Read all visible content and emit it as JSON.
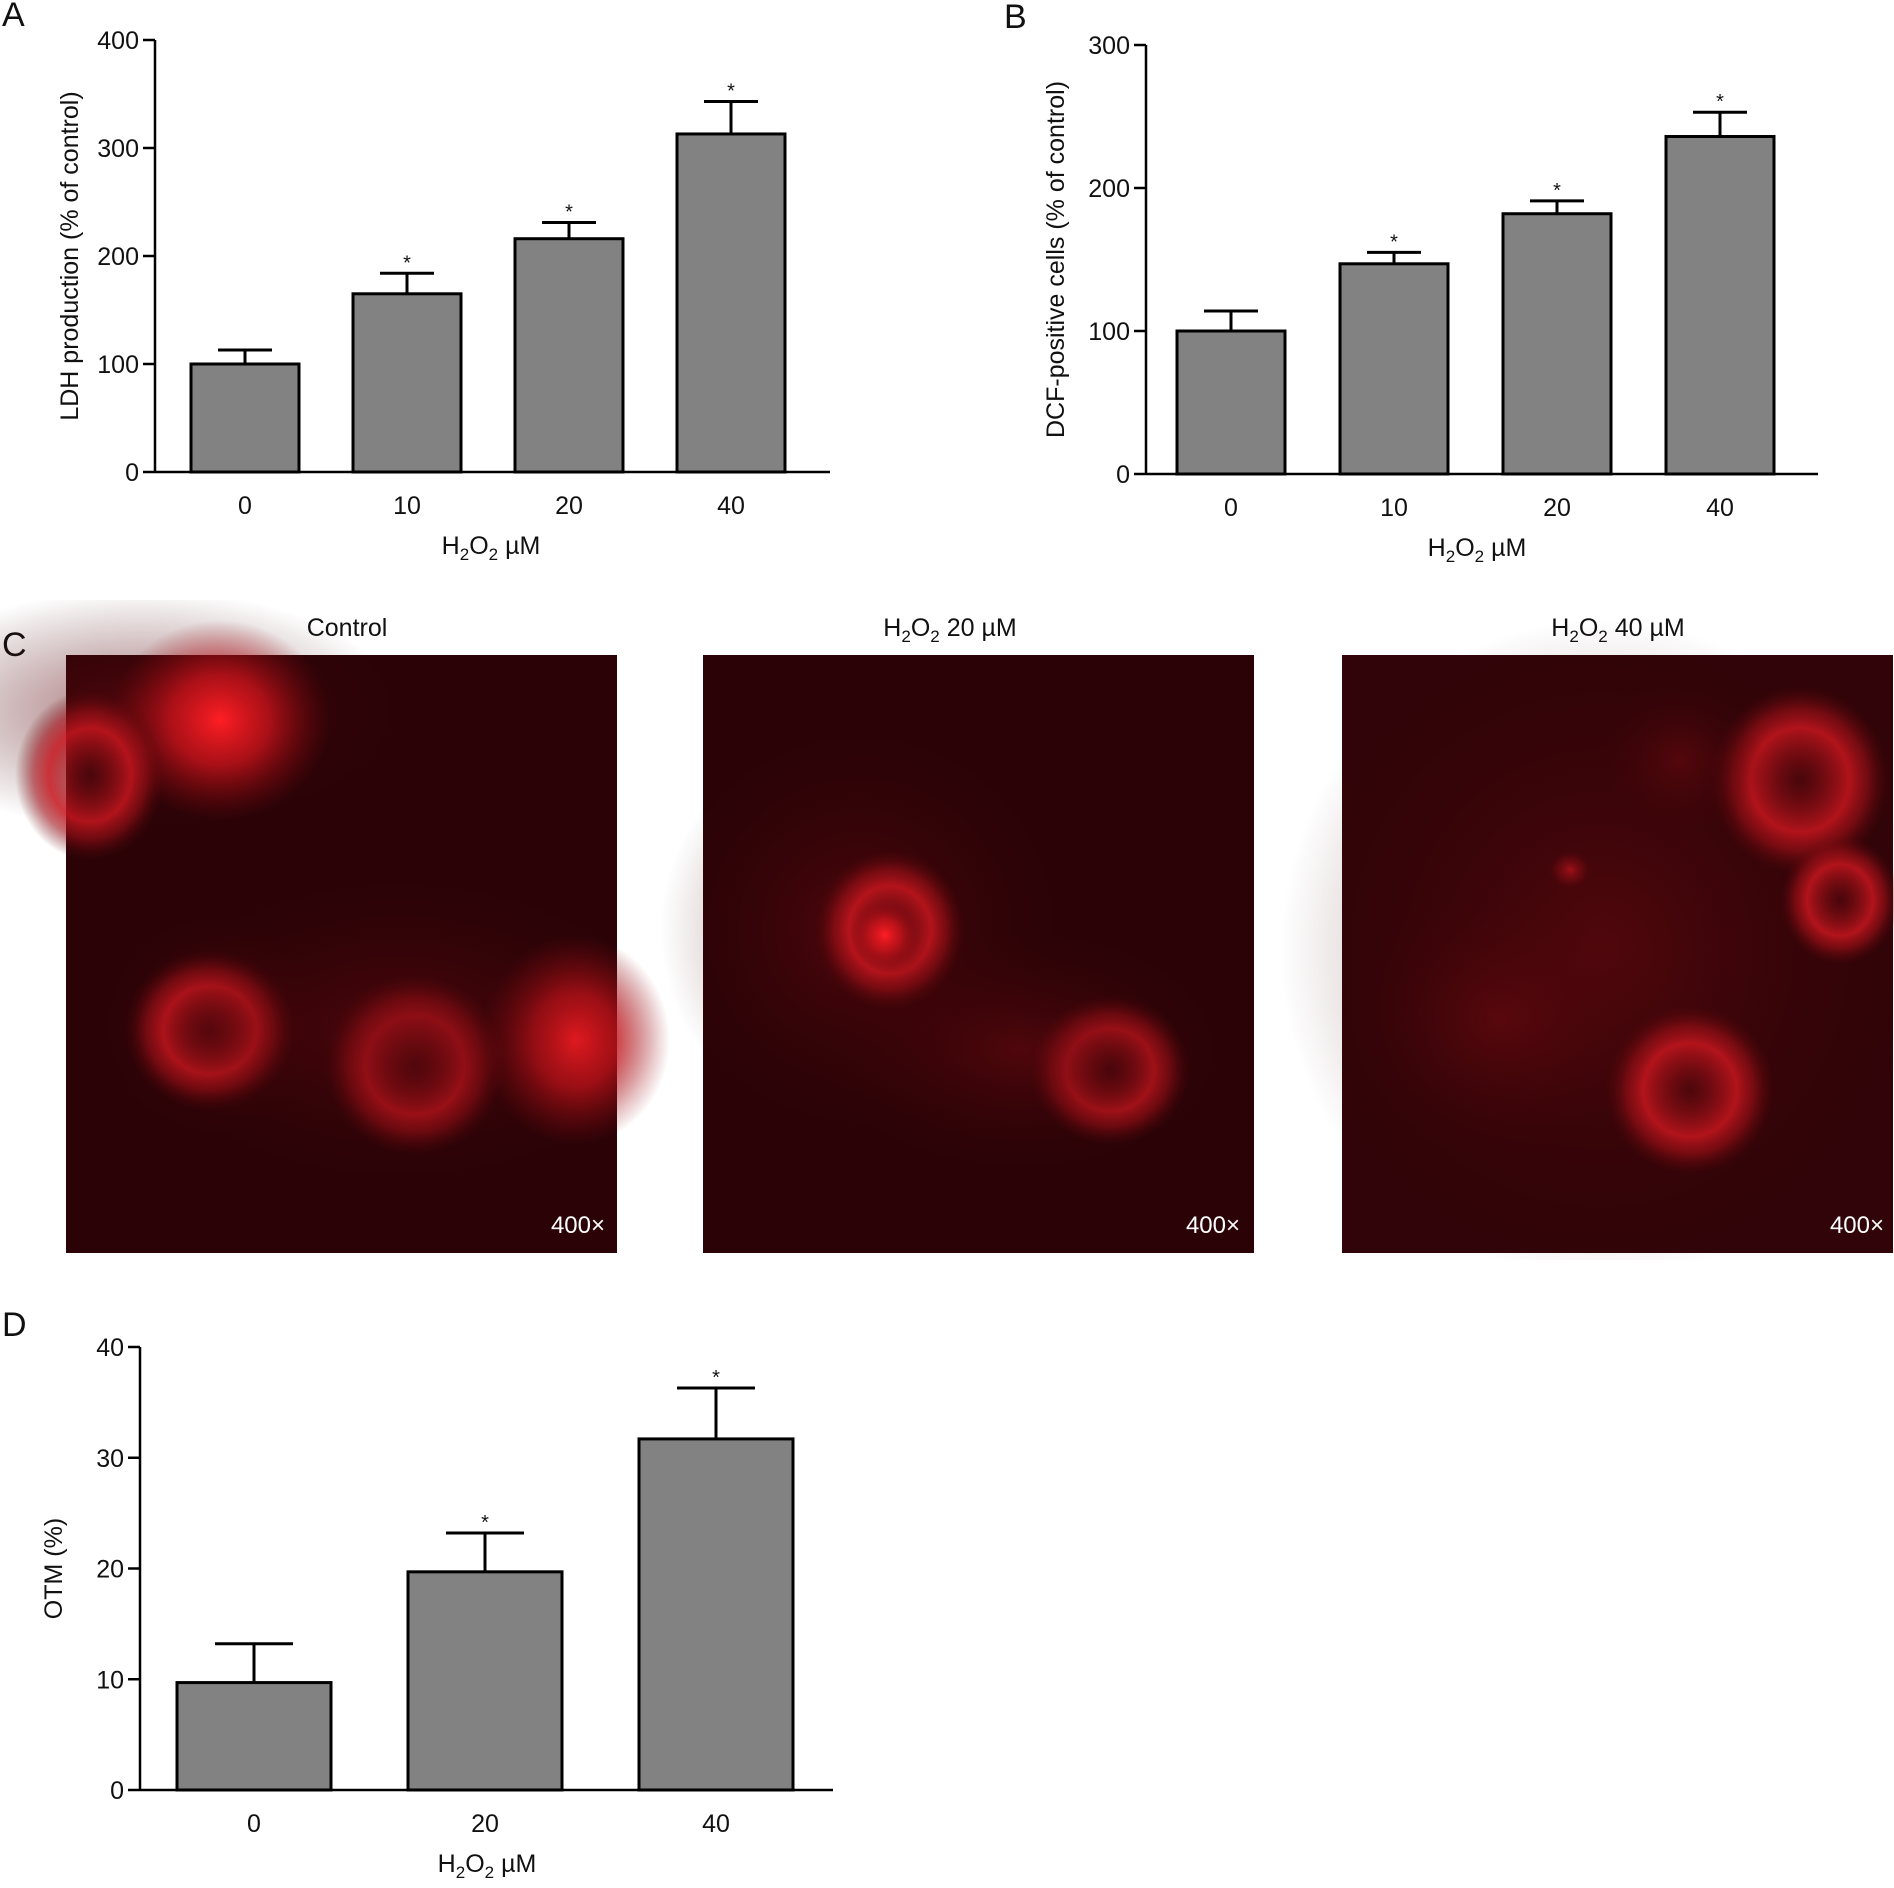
{
  "panels": {
    "A": {
      "label": "A"
    },
    "B": {
      "label": "B"
    },
    "C": {
      "label": "C",
      "images": [
        {
          "title_main": "Control",
          "title_sub": "",
          "title_rest": "",
          "magnification": "400×"
        },
        {
          "title_main": "H",
          "title_sub": "2",
          "title_mid": "O",
          "title_sub2": "2",
          "title_rest": " 20 µM",
          "magnification": "400×"
        },
        {
          "title_main": "H",
          "title_sub": "2",
          "title_mid": "O",
          "title_sub2": "2",
          "title_rest": " 40 µM",
          "magnification": "400×"
        }
      ]
    },
    "D": {
      "label": "D"
    }
  },
  "colors": {
    "bar_fill": "#828282",
    "bar_stroke": "#000000",
    "micrograph_bg": "#2a0006",
    "fluorescence": "#e0141e"
  },
  "chart_data": [
    {
      "panel": "A",
      "type": "bar",
      "categories": [
        "0",
        "10",
        "20",
        "40"
      ],
      "values": [
        100,
        165,
        216,
        313
      ],
      "errors": [
        13,
        19,
        15,
        30
      ],
      "significance": [
        "",
        "*",
        "*",
        "*"
      ],
      "ylabel": "LDH production (% of control)",
      "xlabel_parts": {
        "main": "H",
        "sub": "2",
        "mid": "O",
        "sub2": "2",
        "rest": " µM"
      },
      "yticks": [
        "0",
        "100",
        "200",
        "300",
        "400"
      ],
      "ylim": [
        0,
        400
      ]
    },
    {
      "panel": "B",
      "type": "bar",
      "categories": [
        "0",
        "10",
        "20",
        "40"
      ],
      "values": [
        100,
        147,
        182,
        236
      ],
      "errors": [
        14,
        8,
        9,
        17
      ],
      "significance": [
        "",
        "*",
        "*",
        "*"
      ],
      "ylabel": "DCF-positive cells (% of control)",
      "xlabel_parts": {
        "main": "H",
        "sub": "2",
        "mid": "O",
        "sub2": "2",
        "rest": " µM"
      },
      "yticks": [
        "0",
        "100",
        "200",
        "300"
      ],
      "ylim": [
        0,
        300
      ]
    },
    {
      "panel": "D",
      "type": "bar",
      "categories": [
        "0",
        "20",
        "40"
      ],
      "values": [
        9.7,
        19.7,
        31.7
      ],
      "errors": [
        3.5,
        3.5,
        4.6
      ],
      "significance": [
        "",
        "*",
        "*"
      ],
      "ylabel": "OTM (%)",
      "xlabel_parts": {
        "main": "H",
        "sub": "2",
        "mid": "O",
        "sub2": "2",
        "rest": " µM"
      },
      "yticks": [
        "0",
        "10",
        "20",
        "30",
        "40"
      ],
      "ylim": [
        0,
        40
      ]
    }
  ]
}
